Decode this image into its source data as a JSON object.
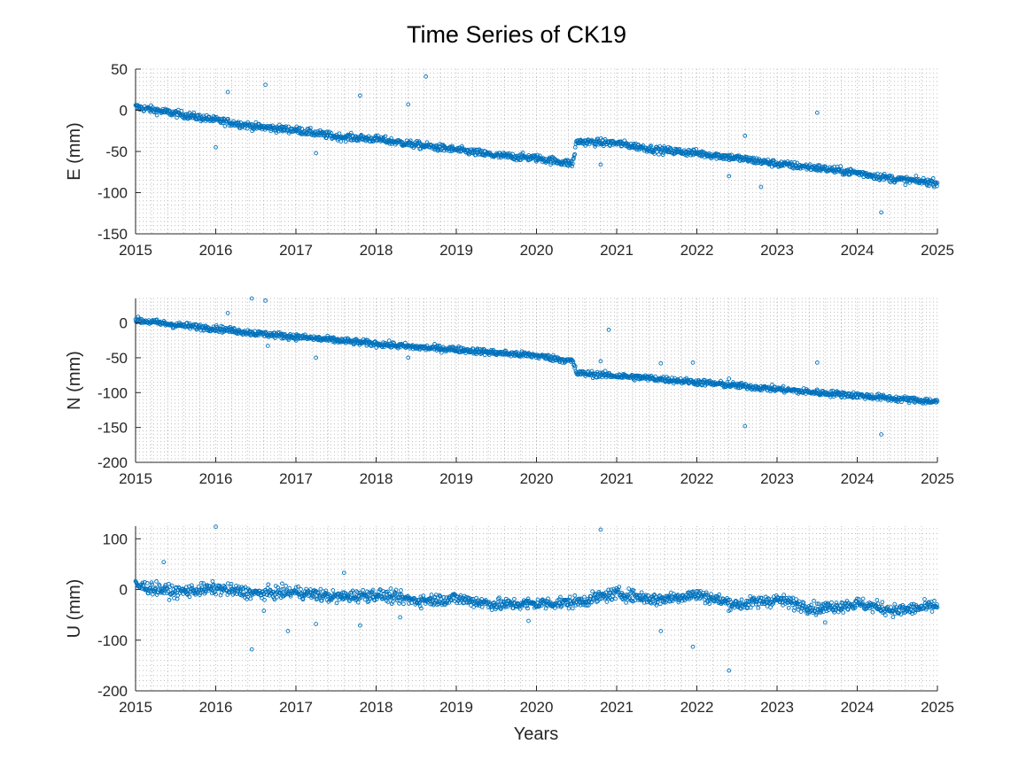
{
  "figure": {
    "title": "Time Series of CK19",
    "xlabel": "Years"
  },
  "chart_data": [
    {
      "type": "scatter",
      "panel": "E",
      "ylabel": "E (mm)",
      "xlim": [
        2015,
        2025
      ],
      "ylim": [
        -150,
        50
      ],
      "xticks": [
        2015,
        2016,
        2017,
        2018,
        2019,
        2020,
        2021,
        2022,
        2023,
        2024,
        2025
      ],
      "yticks": [
        -150,
        -100,
        -50,
        0,
        50
      ],
      "grid": "minor dotted",
      "marker": "open circle",
      "color": "#0072BD",
      "trend_points": [
        [
          2015.0,
          4
        ],
        [
          2015.5,
          -4
        ],
        [
          2016.0,
          -12
        ],
        [
          2016.5,
          -20
        ],
        [
          2017.0,
          -24
        ],
        [
          2017.5,
          -32
        ],
        [
          2018.0,
          -35
        ],
        [
          2018.5,
          -42
        ],
        [
          2019.0,
          -48
        ],
        [
          2019.5,
          -55
        ],
        [
          2020.0,
          -58
        ],
        [
          2020.45,
          -65
        ],
        [
          2020.5,
          -38
        ],
        [
          2021.0,
          -40
        ],
        [
          2021.5,
          -48
        ],
        [
          2022.0,
          -52
        ],
        [
          2022.5,
          -58
        ],
        [
          2023.0,
          -65
        ],
        [
          2023.5,
          -70
        ],
        [
          2024.0,
          -76
        ],
        [
          2024.5,
          -84
        ],
        [
          2025.0,
          -88
        ]
      ],
      "outliers": [
        [
          2016.15,
          22
        ],
        [
          2016.62,
          31
        ],
        [
          2017.8,
          18
        ],
        [
          2018.4,
          7
        ],
        [
          2018.62,
          41
        ],
        [
          2016.0,
          -45
        ],
        [
          2017.25,
          -52
        ],
        [
          2020.8,
          -66
        ],
        [
          2022.4,
          -80
        ],
        [
          2022.6,
          -31
        ],
        [
          2022.8,
          -93
        ],
        [
          2023.5,
          -3
        ],
        [
          2024.3,
          -124
        ]
      ]
    },
    {
      "type": "scatter",
      "panel": "N",
      "ylabel": "N (mm)",
      "xlim": [
        2015,
        2025
      ],
      "ylim": [
        -200,
        35
      ],
      "xticks": [
        2015,
        2016,
        2017,
        2018,
        2019,
        2020,
        2021,
        2022,
        2023,
        2024,
        2025
      ],
      "yticks": [
        -200,
        -150,
        -100,
        -50,
        0
      ],
      "grid": "minor dotted",
      "marker": "open circle",
      "color": "#0072BD",
      "trend_points": [
        [
          2015.0,
          4
        ],
        [
          2015.5,
          -3
        ],
        [
          2016.0,
          -8
        ],
        [
          2016.5,
          -15
        ],
        [
          2017.0,
          -20
        ],
        [
          2017.5,
          -25
        ],
        [
          2018.0,
          -30
        ],
        [
          2018.5,
          -35
        ],
        [
          2019.0,
          -38
        ],
        [
          2019.5,
          -43
        ],
        [
          2020.0,
          -47
        ],
        [
          2020.45,
          -55
        ],
        [
          2020.5,
          -72
        ],
        [
          2021.0,
          -76
        ],
        [
          2021.5,
          -80
        ],
        [
          2022.0,
          -85
        ],
        [
          2022.5,
          -90
        ],
        [
          2023.0,
          -95
        ],
        [
          2023.5,
          -100
        ],
        [
          2024.0,
          -104
        ],
        [
          2024.5,
          -109
        ],
        [
          2025.0,
          -113
        ]
      ],
      "outliers": [
        [
          2016.15,
          14
        ],
        [
          2016.45,
          35
        ],
        [
          2016.62,
          32
        ],
        [
          2016.65,
          -33
        ],
        [
          2017.25,
          -50
        ],
        [
          2018.4,
          -50
        ],
        [
          2020.8,
          -55
        ],
        [
          2020.9,
          -10
        ],
        [
          2021.55,
          -58
        ],
        [
          2021.95,
          -57
        ],
        [
          2022.6,
          -148
        ],
        [
          2023.5,
          -57
        ],
        [
          2024.3,
          -160
        ],
        [
          2022.4,
          -80
        ]
      ]
    },
    {
      "type": "scatter",
      "panel": "U",
      "ylabel": "U (mm)",
      "xlim": [
        2015,
        2025
      ],
      "ylim": [
        -200,
        125
      ],
      "xticks": [
        2015,
        2016,
        2017,
        2018,
        2019,
        2020,
        2021,
        2022,
        2023,
        2024,
        2025
      ],
      "yticks": [
        -200,
        -100,
        0,
        100
      ],
      "grid": "minor dotted",
      "marker": "open circle",
      "color": "#0072BD",
      "trend_points": [
        [
          2015.0,
          8
        ],
        [
          2015.5,
          -5
        ],
        [
          2016.0,
          2
        ],
        [
          2016.5,
          -8
        ],
        [
          2017.0,
          -5
        ],
        [
          2017.5,
          -15
        ],
        [
          2018.0,
          -10
        ],
        [
          2018.5,
          -22
        ],
        [
          2019.0,
          -18
        ],
        [
          2019.5,
          -30
        ],
        [
          2020.0,
          -28
        ],
        [
          2020.5,
          -25
        ],
        [
          2021.0,
          -8
        ],
        [
          2021.5,
          -20
        ],
        [
          2022.0,
          -10
        ],
        [
          2022.5,
          -30
        ],
        [
          2023.0,
          -20
        ],
        [
          2023.5,
          -38
        ],
        [
          2024.0,
          -28
        ],
        [
          2024.5,
          -42
        ],
        [
          2025.0,
          -32
        ]
      ],
      "outliers": [
        [
          2016.0,
          124
        ],
        [
          2020.8,
          118
        ],
        [
          2015.35,
          54
        ],
        [
          2017.6,
          33
        ],
        [
          2016.45,
          -118
        ],
        [
          2016.6,
          -42
        ],
        [
          2016.9,
          -82
        ],
        [
          2017.25,
          -68
        ],
        [
          2017.8,
          -71
        ],
        [
          2018.3,
          -55
        ],
        [
          2019.9,
          -62
        ],
        [
          2021.55,
          -82
        ],
        [
          2021.95,
          -113
        ],
        [
          2022.4,
          -160
        ],
        [
          2023.6,
          -65
        ]
      ]
    }
  ]
}
